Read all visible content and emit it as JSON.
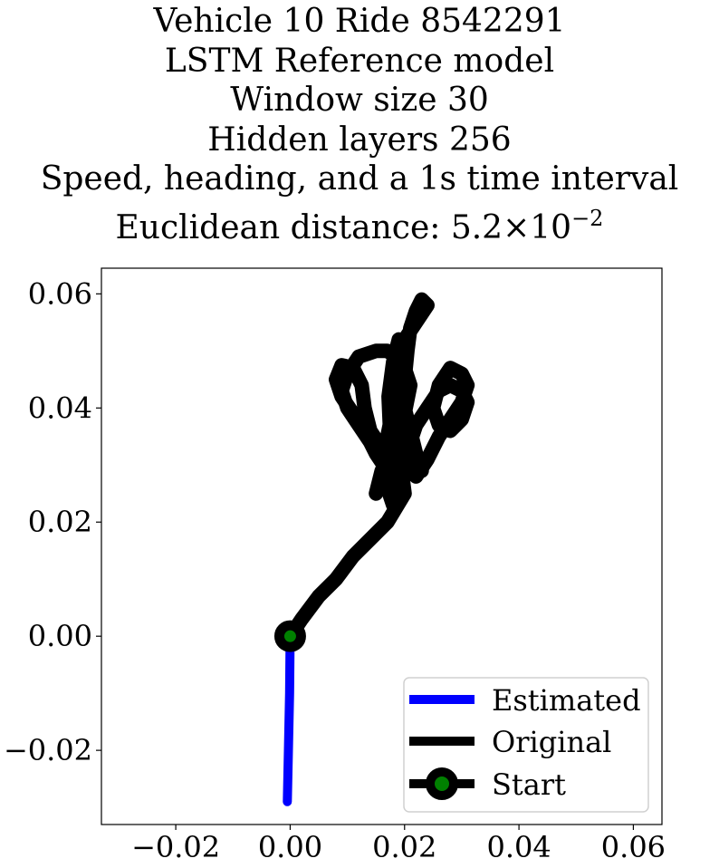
{
  "chart_data": {
    "type": "line",
    "title_lines": [
      "Vehicle 10 Ride 8542291",
      "LSTM Reference model",
      "Window size 30",
      "Hidden layers 256",
      "Speed, heading, and a 1s time interval"
    ],
    "distance_prefix": "Euclidean distance: 5.2",
    "distance_times": "×",
    "distance_base": "10",
    "distance_exponent": "−2",
    "xlabel": "",
    "ylabel": "",
    "xlim": [
      -0.033,
      0.065
    ],
    "ylim": [
      -0.033,
      0.0645
    ],
    "xticks": [
      -0.02,
      0.0,
      0.02,
      0.04,
      0.06
    ],
    "yticks": [
      -0.02,
      0.0,
      0.02,
      0.04,
      0.06
    ],
    "xtick_labels": [
      "−0.02",
      "0.00",
      "0.02",
      "0.04",
      "0.06"
    ],
    "ytick_labels": [
      "−0.02",
      "0.00",
      "0.02",
      "0.04",
      "0.06"
    ],
    "grid": false,
    "legend_position": "bottom-right",
    "series": [
      {
        "name": "Estimated",
        "color": "#0000ff",
        "x": [
          0.0,
          -0.0001,
          -0.0003,
          -0.0005
        ],
        "y": [
          0.0,
          -0.01,
          -0.02,
          -0.029
        ]
      },
      {
        "name": "Original",
        "color": "#000000",
        "x": [
          0.0,
          0.002,
          0.005,
          0.008,
          0.011,
          0.014,
          0.017,
          0.02,
          0.0195,
          0.016,
          0.014,
          0.013,
          0.0125,
          0.011,
          0.009,
          0.008,
          0.009,
          0.011,
          0.013,
          0.015,
          0.017,
          0.0175,
          0.0172,
          0.018,
          0.019,
          0.0185,
          0.017,
          0.015,
          0.012,
          0.01,
          0.009,
          0.01,
          0.012,
          0.014,
          0.016,
          0.017,
          0.018,
          0.019,
          0.02,
          0.021,
          0.02,
          0.019,
          0.02,
          0.022,
          0.024,
          0.026,
          0.028,
          0.03,
          0.031,
          0.03,
          0.028,
          0.026,
          0.025,
          0.026,
          0.028,
          0.03,
          0.031,
          0.03,
          0.028,
          0.026,
          0.024,
          0.022,
          0.021,
          0.022,
          0.023,
          0.022,
          0.021,
          0.02,
          0.019,
          0.0185,
          0.02,
          0.022,
          0.024,
          0.023,
          0.022,
          0.021,
          0.0205,
          0.02,
          0.019,
          0.018,
          0.0175,
          0.018,
          0.019,
          0.0185,
          0.018,
          0.017,
          0.016,
          0.015
        ],
        "y": [
          0.0,
          0.003,
          0.007,
          0.01,
          0.014,
          0.017,
          0.02,
          0.025,
          0.029,
          0.033,
          0.036,
          0.04,
          0.044,
          0.047,
          0.0475,
          0.045,
          0.042,
          0.039,
          0.036,
          0.032,
          0.029,
          0.035,
          0.042,
          0.048,
          0.052,
          0.049,
          0.05,
          0.05,
          0.049,
          0.046,
          0.043,
          0.04,
          0.037,
          0.034,
          0.031,
          0.035,
          0.04,
          0.045,
          0.047,
          0.044,
          0.039,
          0.034,
          0.03,
          0.028,
          0.031,
          0.035,
          0.038,
          0.041,
          0.044,
          0.046,
          0.047,
          0.044,
          0.04,
          0.037,
          0.036,
          0.038,
          0.041,
          0.043,
          0.044,
          0.043,
          0.04,
          0.037,
          0.034,
          0.031,
          0.029,
          0.032,
          0.036,
          0.04,
          0.044,
          0.048,
          0.052,
          0.055,
          0.058,
          0.059,
          0.057,
          0.054,
          0.05,
          0.045,
          0.04,
          0.035,
          0.03,
          0.027,
          0.025,
          0.024,
          0.023,
          0.026,
          0.029,
          0.025
        ]
      },
      {
        "name": "Start",
        "color": "#000000",
        "marker_color": "#008000",
        "x": [
          0.0
        ],
        "y": [
          0.0
        ]
      }
    ]
  }
}
